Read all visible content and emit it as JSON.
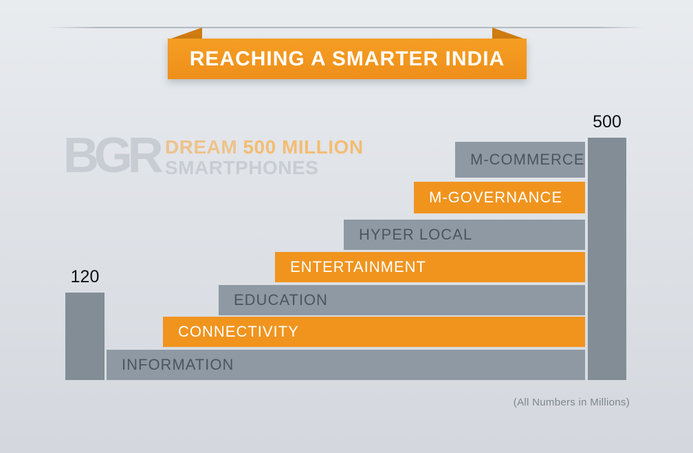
{
  "banner": {
    "title": "REACHING A SMARTER INDIA"
  },
  "watermark": {
    "logo": "BGR",
    "tagline_word1": "DREAM ",
    "tagline_word2": "500 MILLION",
    "tagline_line2": "SMARTPHONES"
  },
  "chart_data": {
    "type": "bar",
    "title": "REACHING A SMARTER INDIA",
    "note": "(All Numbers in Millions)",
    "unit": "Millions",
    "bars": [
      {
        "name": "current-smartphones",
        "label": "120",
        "value": 120
      },
      {
        "name": "dream-smartphones",
        "label": "500",
        "value": 500
      }
    ],
    "steps": [
      "INFORMATION",
      "CONNECTIVITY",
      "EDUCATION",
      "ENTERTAINMENT",
      "HYPER LOCAL",
      "M-GOVERNANCE",
      "M-COMMERCE"
    ],
    "step_colors": [
      "gray",
      "orange",
      "gray",
      "orange",
      "gray",
      "orange",
      "gray"
    ],
    "colors": {
      "orange": "#F0941E",
      "gray": "#8E99A3",
      "bar_gray": "#828D96"
    }
  },
  "footer": {
    "note": "(All Numbers in Millions)"
  }
}
